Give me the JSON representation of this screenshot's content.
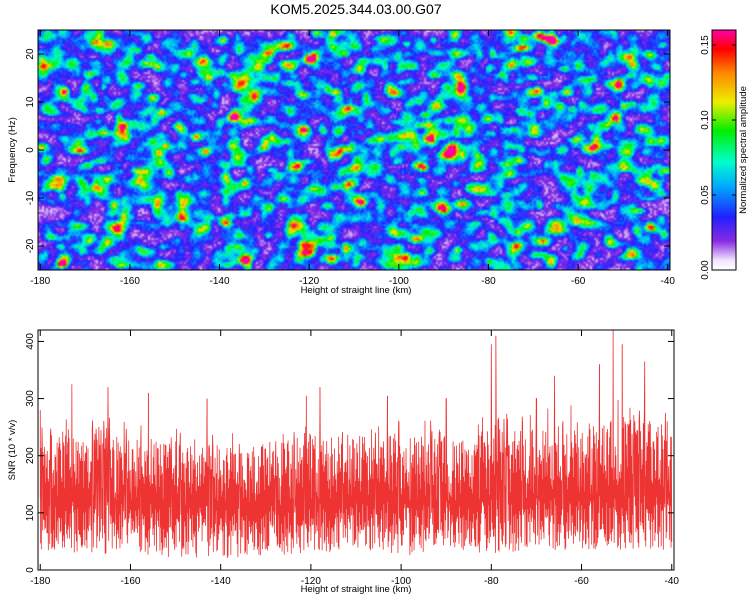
{
  "title": "KOM5.2025.344.03.00.G07",
  "chart_data": [
    {
      "type": "heatmap",
      "title": "KOM5.2025.344.03.00.G07",
      "xlabel": "Height of straight line (km)",
      "ylabel": "Frequency (Hz)",
      "xlim": [
        -180.5,
        -39.5
      ],
      "ylim": [
        -25,
        25
      ],
      "xticks": [
        -180,
        -160,
        -140,
        -120,
        -100,
        -80,
        -60,
        -40
      ],
      "xtick_labels": [
        "-180",
        "-160",
        "-140",
        "-120",
        "-100",
        "-80",
        "-60",
        "-40"
      ],
      "yticks": [
        20,
        10,
        0,
        -10,
        -20
      ],
      "ytick_labels": [
        "20",
        "10",
        "0",
        "-10",
        "-20"
      ],
      "colorbar": {
        "label": "Normalized spectral amplitude",
        "range": [
          0,
          0.16
        ],
        "ticks": [
          0,
          0.05,
          0.1,
          0.15
        ],
        "tick_labels": [
          "0.00",
          "0.05",
          "0.10",
          "0.15"
        ],
        "colormap": "rainbow (white-violet-blue-cyan-green-yellow-red-magenta)"
      },
      "background_level": 0.02,
      "hotspots": [
        {
          "x": -137,
          "y": 7,
          "value": 0.16
        },
        {
          "x": -120,
          "y": 19,
          "value": 0.155
        },
        {
          "x": -162,
          "y": 5,
          "value": 0.11
        },
        {
          "x": -69,
          "y": 24,
          "value": 0.12
        },
        {
          "x": -66,
          "y": 23,
          "value": 0.1
        },
        {
          "x": -121,
          "y": -21,
          "value": 0.1
        },
        {
          "x": -96,
          "y": -3,
          "value": 0.09
        },
        {
          "x": -48,
          "y": 18,
          "value": 0.09
        },
        {
          "x": -109,
          "y": 17,
          "value": 0.085
        },
        {
          "x": -88,
          "y": 1,
          "value": 0.08
        },
        {
          "x": -155,
          "y": 11,
          "value": 0.08
        },
        {
          "x": -44,
          "y": 2,
          "value": 0.08
        }
      ]
    },
    {
      "type": "line",
      "title": "",
      "xlabel": "Height of straight line (km)",
      "ylabel": "SNR (10 * v/v)",
      "xlim": [
        -180.5,
        -39.5
      ],
      "ylim": [
        0,
        420
      ],
      "xticks": [
        -180,
        -160,
        -140,
        -120,
        -100,
        -80,
        -60,
        -40
      ],
      "xtick_labels": [
        "-180",
        "-160",
        "-140",
        "-120",
        "-100",
        "-80",
        "-60",
        "-40"
      ],
      "yticks": [
        0,
        100,
        200,
        300,
        400
      ],
      "ytick_labels": [
        "0",
        "100",
        "200",
        "300",
        "400"
      ],
      "series": [
        {
          "name": "SNR",
          "color": "#ee3333",
          "envelope_x": [
            -180,
            -170,
            -160,
            -150,
            -140,
            -130,
            -120,
            -110,
            -100,
            -90,
            -80,
            -70,
            -60,
            -50,
            -40
          ],
          "mean": [
            125,
            120,
            118,
            115,
            110,
            112,
            115,
            120,
            118,
            120,
            122,
            125,
            128,
            130,
            130
          ],
          "typical_peak": [
            230,
            240,
            235,
            225,
            215,
            220,
            230,
            240,
            235,
            235,
            245,
            250,
            260,
            270,
            265
          ],
          "typical_trough": [
            30,
            25,
            30,
            20,
            20,
            25,
            30,
            30,
            25,
            30,
            30,
            30,
            35,
            35,
            35
          ],
          "spikes": [
            {
              "x": -180,
              "y": 280
            },
            {
              "x": -173,
              "y": 325
            },
            {
              "x": -165,
              "y": 320
            },
            {
              "x": -156,
              "y": 310
            },
            {
              "x": -143,
              "y": 300
            },
            {
              "x": -121,
              "y": 305
            },
            {
              "x": -118,
              "y": 320
            },
            {
              "x": -103,
              "y": 305
            },
            {
              "x": -90,
              "y": 300
            },
            {
              "x": -80,
              "y": 395
            },
            {
              "x": -79,
              "y": 410
            },
            {
              "x": -70,
              "y": 300
            },
            {
              "x": -66,
              "y": 340
            },
            {
              "x": -56,
              "y": 360
            },
            {
              "x": -53,
              "y": 420
            },
            {
              "x": -51,
              "y": 395
            },
            {
              "x": -46,
              "y": 365
            },
            {
              "x": -41,
              "y": 260
            }
          ]
        }
      ]
    }
  ]
}
